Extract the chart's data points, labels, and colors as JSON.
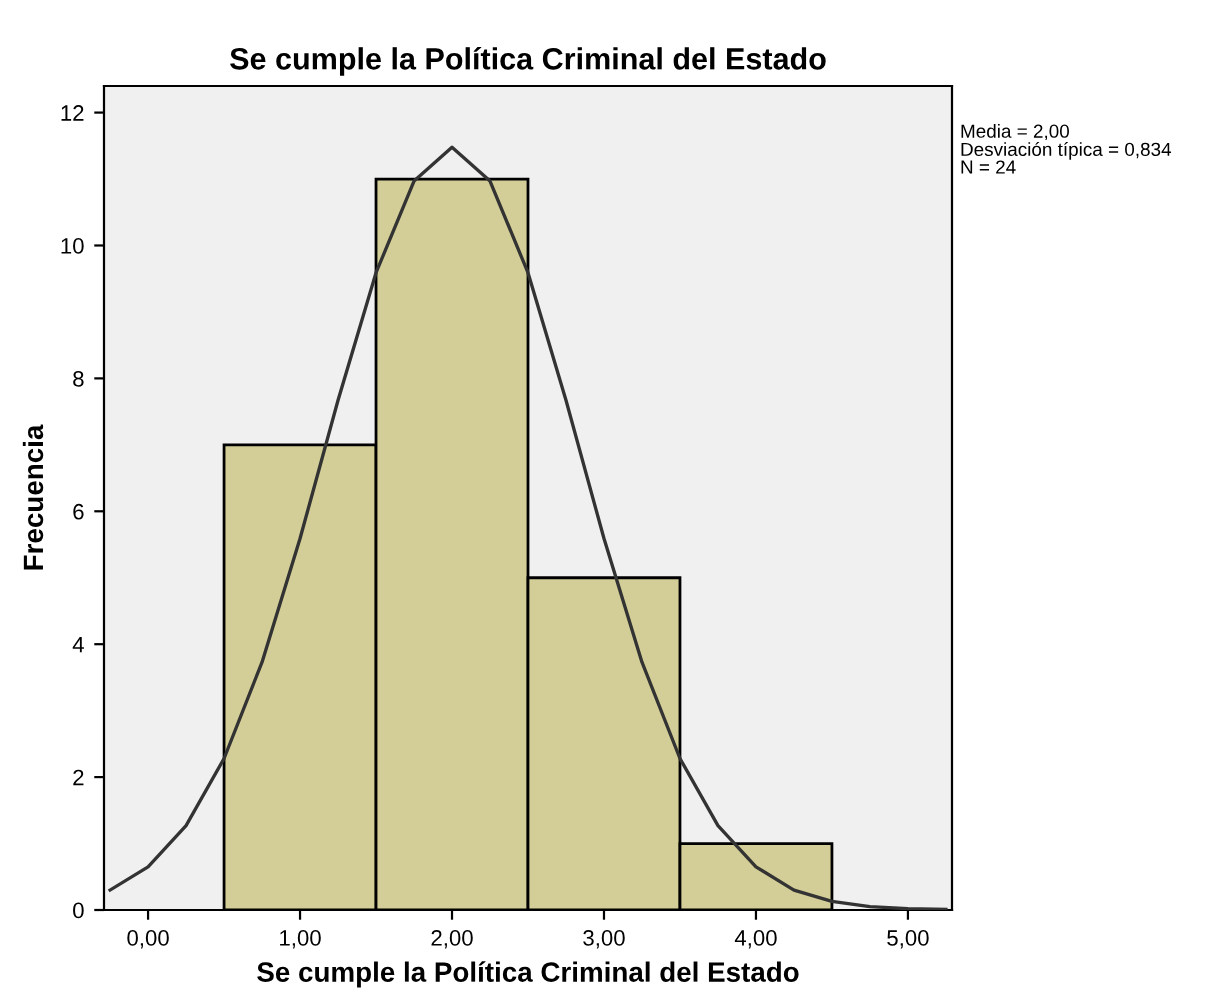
{
  "chart_data": {
    "type": "histogram",
    "title": "Se cumple la Política Criminal del Estado",
    "xlabel": "Se cumple la Política Criminal del Estado",
    "ylabel": "Frecuencia",
    "bins": [
      0.5,
      1.5,
      2.5,
      3.5,
      4.5
    ],
    "series": [
      {
        "color": "#d3ce97",
        "values": [
          7,
          11,
          5,
          1
        ]
      },
      {
        "type": "line",
        "color": "#333333",
        "x": [
          -0.25,
          0,
          0.25,
          0.5,
          0.75,
          1.0,
          1.25,
          1.5,
          1.75,
          2.0,
          2.25,
          2.5,
          2.75,
          3.0,
          3.25,
          3.5,
          3.75,
          4.0,
          4.25,
          4.5,
          4.75,
          5.0,
          5.25
        ],
        "values": [
          0.3,
          0.65,
          1.27,
          2.28,
          3.73,
          5.59,
          7.67,
          9.59,
          10.97,
          11.48,
          10.97,
          9.59,
          7.67,
          5.59,
          3.73,
          2.28,
          1.27,
          0.65,
          0.3,
          0.13,
          0.05,
          0.02,
          0.01
        ]
      }
    ],
    "xlim": [
      -0.29,
      5.29
    ],
    "ylim": [
      0,
      12.4
    ],
    "xticks": [
      {
        "value": 0,
        "label": "0,00"
      },
      {
        "value": 1,
        "label": "1,00"
      },
      {
        "value": 2,
        "label": "2,00"
      },
      {
        "value": 3,
        "label": "3,00"
      },
      {
        "value": 4,
        "label": "4,00"
      },
      {
        "value": 5,
        "label": "5,00"
      }
    ],
    "yticks": [
      0,
      2,
      4,
      6,
      8,
      10,
      12
    ],
    "annotations": [
      "Media = 2,00",
      "Desviación típica = 0,834",
      "N = 24"
    ],
    "grid": false,
    "legend": false
  }
}
